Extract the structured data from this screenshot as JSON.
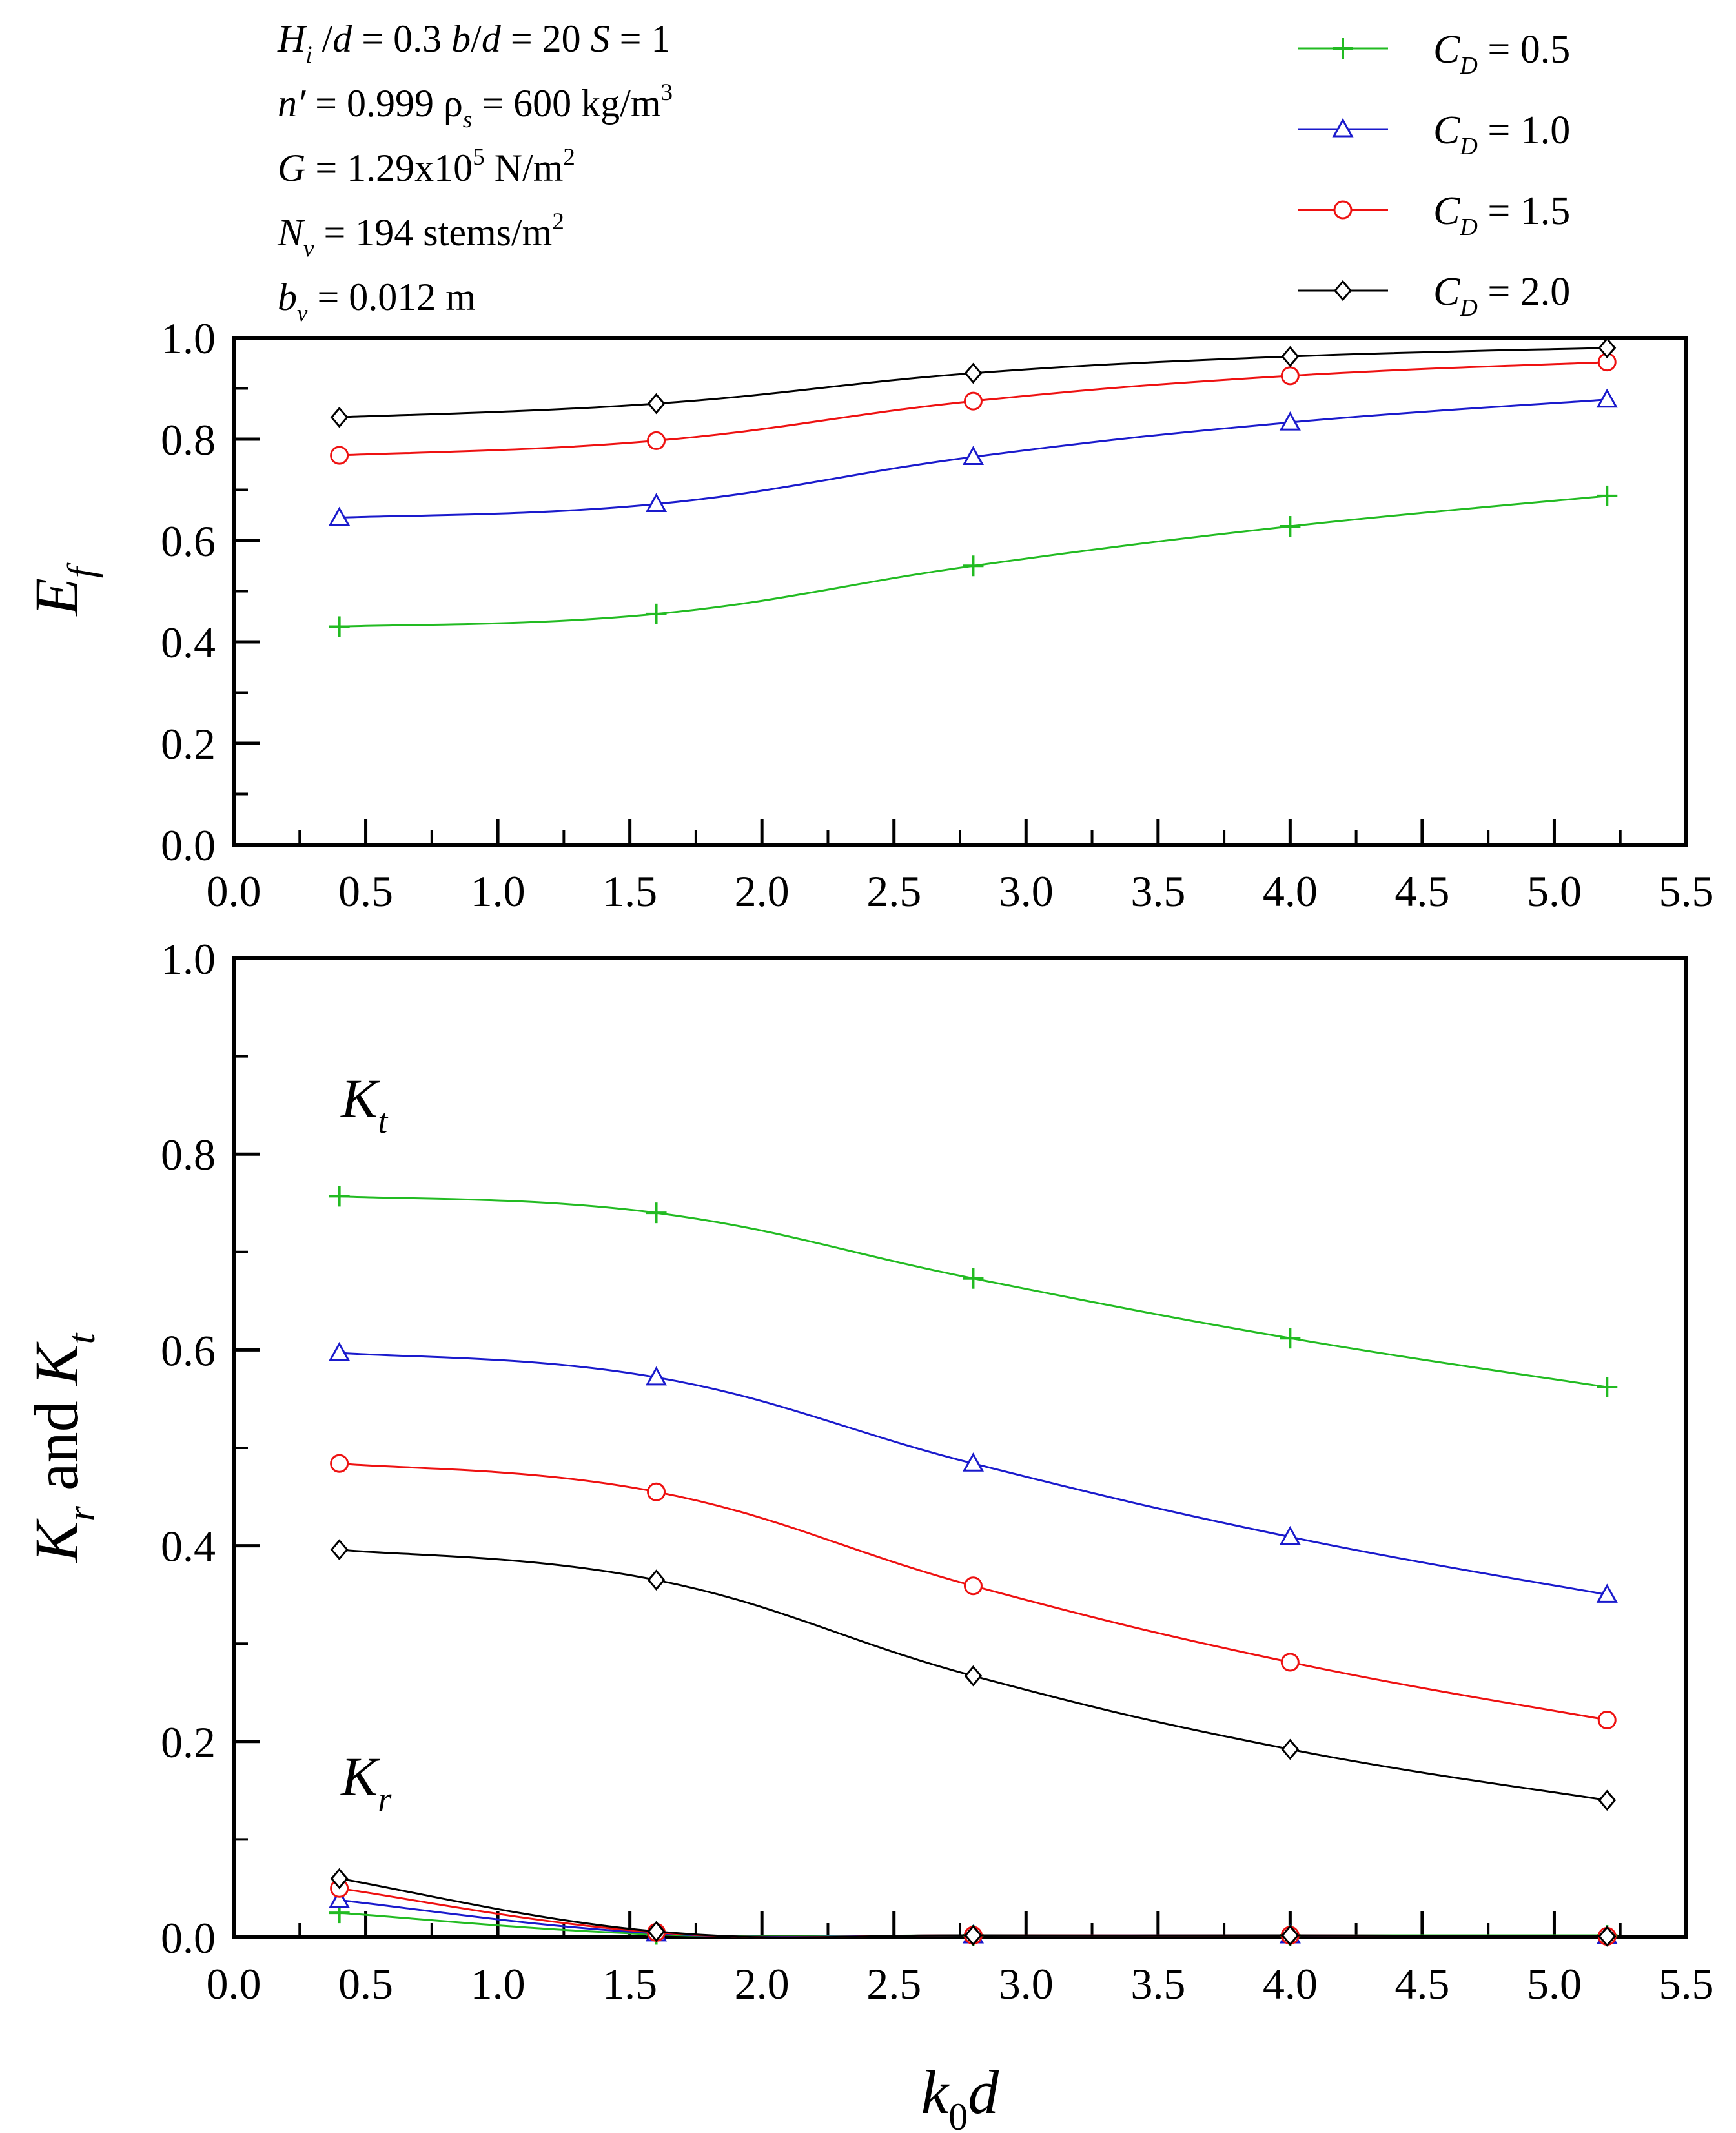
{
  "figure": {
    "parameters": [
      {
        "parts": [
          {
            "text": "H",
            "style": "italic"
          },
          {
            "text": "i",
            "style": "sub-italic"
          },
          {
            "text": " /",
            "style": "normal"
          },
          {
            "text": "d",
            "style": "italic"
          },
          {
            "text": " = 0.3    ",
            "style": "normal"
          },
          {
            "text": "b",
            "style": "italic"
          },
          {
            "text": "/",
            "style": "normal"
          },
          {
            "text": "d",
            "style": "italic"
          },
          {
            "text": " = 20      ",
            "style": "normal"
          },
          {
            "text": "S",
            "style": "italic"
          },
          {
            "text": " = 1",
            "style": "normal"
          }
        ]
      },
      {
        "parts": [
          {
            "text": "n′",
            "style": "italic"
          },
          {
            "text": " = 0.999     ρ",
            "style": "normal"
          },
          {
            "text": "s",
            "style": "sub-italic"
          },
          {
            "text": " = 600 kg/m",
            "style": "normal"
          },
          {
            "text": "3",
            "style": "sup"
          }
        ]
      },
      {
        "parts": [
          {
            "text": "G",
            "style": "italic"
          },
          {
            "text": " = 1.29x10",
            "style": "normal"
          },
          {
            "text": "5",
            "style": "sup"
          },
          {
            "text": " N/m",
            "style": "normal"
          },
          {
            "text": "2",
            "style": "sup"
          }
        ]
      },
      {
        "parts": [
          {
            "text": "N",
            "style": "italic"
          },
          {
            "text": "v",
            "style": "sub-italic"
          },
          {
            "text": " = 194 stems/m",
            "style": "normal"
          },
          {
            "text": "2",
            "style": "sup"
          }
        ]
      },
      {
        "parts": [
          {
            "text": "b",
            "style": "italic"
          },
          {
            "text": "v",
            "style": "sub-italic"
          },
          {
            "text": " = 0.012 m",
            "style": "normal"
          }
        ]
      }
    ],
    "legend": [
      {
        "symbol": "C",
        "subscript": "D",
        "value": " = 0.5",
        "color": "#22bb22",
        "marker": "plus"
      },
      {
        "symbol": "C",
        "subscript": "D",
        "value": " = 1.0",
        "color": "#1a1acc",
        "marker": "triangle"
      },
      {
        "symbol": "C",
        "subscript": "D",
        "value": " = 1.5",
        "color": "#ee1111",
        "marker": "circle"
      },
      {
        "symbol": "C",
        "subscript": "D",
        "value": " = 2.0",
        "color": "#000000",
        "marker": "diamond"
      }
    ],
    "top_panel": {
      "y_title": {
        "main": "E",
        "sub": "f"
      }
    },
    "bottom_panel": {
      "y_title": {
        "k1": "K",
        "s1": "r",
        "mid": " and ",
        "k2": "K",
        "s2": "t"
      },
      "kt_label": {
        "main": "K",
        "sub": "t"
      },
      "kr_label": {
        "main": "K",
        "sub": "r"
      }
    },
    "x_title": {
      "main": "k",
      "sub": "0",
      "tail": "d"
    }
  },
  "chart_data": [
    {
      "type": "line",
      "panel": "top",
      "title": "",
      "xlabel": "k0d",
      "ylabel": "Ef",
      "xlim": [
        0,
        5.5
      ],
      "ylim": [
        0,
        1.0
      ],
      "xticks": [
        "0.0",
        "0.5",
        "1.0",
        "1.5",
        "2.0",
        "2.5",
        "3.0",
        "3.5",
        "4.0",
        "4.5",
        "5.0",
        "5.5"
      ],
      "yticks": [
        "0.0",
        "0.2",
        "0.4",
        "0.6",
        "0.8",
        "1.0"
      ],
      "x": [
        0.4,
        1.6,
        2.8,
        4.0,
        5.2
      ],
      "series": [
        {
          "name": "CD = 0.5",
          "values": [
            0.43,
            0.455,
            0.55,
            0.628,
            0.688
          ]
        },
        {
          "name": "CD = 1.0",
          "values": [
            0.645,
            0.672,
            0.765,
            0.833,
            0.878
          ]
        },
        {
          "name": "CD = 1.5",
          "values": [
            0.768,
            0.797,
            0.875,
            0.925,
            0.952
          ]
        },
        {
          "name": "CD = 2.0",
          "values": [
            0.843,
            0.87,
            0.93,
            0.963,
            0.98
          ]
        }
      ]
    },
    {
      "type": "line",
      "panel": "bottom",
      "title": "",
      "xlabel": "k0d",
      "ylabel": "Kr and Kt",
      "xlim": [
        0,
        5.5
      ],
      "ylim": [
        0,
        1.0
      ],
      "xticks": [
        "0.0",
        "0.5",
        "1.0",
        "1.5",
        "2.0",
        "2.5",
        "3.0",
        "3.5",
        "4.0",
        "4.5",
        "5.0",
        "5.5"
      ],
      "yticks": [
        "0.0",
        "0.2",
        "0.4",
        "0.6",
        "0.8",
        "1.0"
      ],
      "x": [
        0.4,
        1.6,
        2.8,
        4.0,
        5.2
      ],
      "series": [
        {
          "name": "Kt, CD = 0.5",
          "values": [
            0.757,
            0.74,
            0.673,
            0.612,
            0.562
          ]
        },
        {
          "name": "Kt, CD = 1.0",
          "values": [
            0.597,
            0.572,
            0.484,
            0.409,
            0.35
          ]
        },
        {
          "name": "Kt, CD = 1.5",
          "values": [
            0.484,
            0.455,
            0.359,
            0.281,
            0.222
          ]
        },
        {
          "name": "Kt, CD = 2.0",
          "values": [
            0.396,
            0.365,
            0.267,
            0.192,
            0.14
          ]
        },
        {
          "name": "Kr, CD = 0.5",
          "values": [
            0.025,
            0.003,
            0.002,
            0.002,
            0.002
          ]
        },
        {
          "name": "Kr, CD = 1.0",
          "values": [
            0.038,
            0.004,
            0.002,
            0.002,
            0.001
          ]
        },
        {
          "name": "Kr, CD = 1.5",
          "values": [
            0.05,
            0.005,
            0.002,
            0.002,
            0.001
          ]
        },
        {
          "name": "Kr, CD = 2.0",
          "values": [
            0.06,
            0.006,
            0.002,
            0.002,
            0.001
          ]
        }
      ]
    }
  ]
}
